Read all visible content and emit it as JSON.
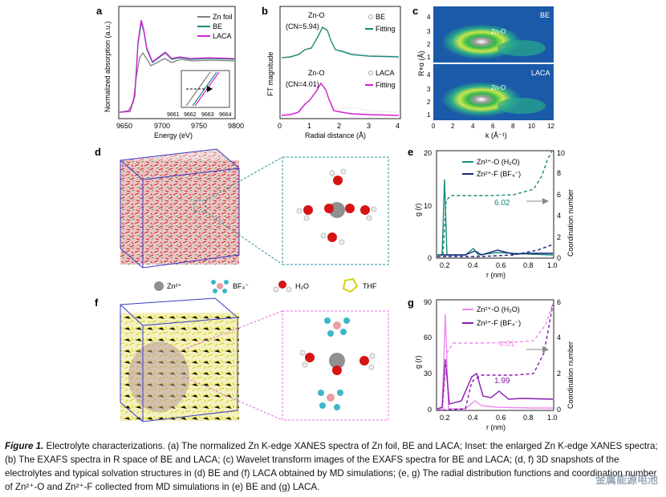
{
  "panels": {
    "a": {
      "letter": "a",
      "ylabel": "Normalized absorption (a.u.)",
      "xlabel": "Energy (eV)",
      "xticks": [
        "9650",
        "9700",
        "9750",
        "9800"
      ],
      "legend": [
        "Zn foil",
        "BE",
        "LACA"
      ],
      "inset_ticks": [
        "9661",
        "9662",
        "9663",
        "9664"
      ]
    },
    "b": {
      "letter": "b",
      "ylabel": "FT magnitude",
      "xlabel": "Radial distance (Å)",
      "xticks": [
        "0",
        "1",
        "2",
        "3",
        "4"
      ],
      "top_peak": "Zn-O",
      "top_cn": "(CN=5.94)",
      "bot_peak": "Zn-O",
      "bot_cn": "(CN=4.01)",
      "legend_top": [
        "BE",
        "Fitting"
      ],
      "legend_bot": [
        "LACA",
        "Fitting"
      ]
    },
    "c": {
      "letter": "c",
      "ylabel": "R+α (Å)",
      "xlabel": "k (Å⁻¹)",
      "xticks": [
        "0",
        "2",
        "4",
        "6",
        "8",
        "10",
        "12"
      ],
      "yticks": [
        "1",
        "2",
        "3",
        "4"
      ],
      "top_label": "BE",
      "bot_label": "LACA",
      "peak_label": "Zn-O"
    },
    "d": {
      "letter": "d"
    },
    "e": {
      "letter": "e",
      "ylabel_left": "g (r)",
      "ylabel_right": "Coordination number",
      "xlabel": "r (nm)",
      "xticks": [
        "0.2",
        "0.4",
        "0.6",
        "0.8",
        "1.0"
      ],
      "yticks_left": [
        "0",
        "10",
        "20"
      ],
      "yticks_right": [
        "0",
        "2",
        "4",
        "6",
        "8",
        "10"
      ],
      "legend": [
        "Zn²⁺-O (H₂O)",
        "Zn²⁺-F (BF₄⁻)"
      ],
      "cn_label": "6.02"
    },
    "f": {
      "letter": "f"
    },
    "g": {
      "letter": "g",
      "ylabel_left": "g (r)",
      "ylabel_right": "Coordination number",
      "xlabel": "r (nm)",
      "xticks": [
        "0.2",
        "0.4",
        "0.6",
        "0.8",
        "1.0"
      ],
      "yticks_left": [
        "0",
        "30",
        "60",
        "90"
      ],
      "yticks_right": [
        "0",
        "2",
        "4",
        "6"
      ],
      "legend": [
        "Zn²⁺-O (H₂O)",
        "Zn²⁺-F (BF₄⁻)"
      ],
      "cn_label_1": "4.01",
      "cn_label_2": "1.99"
    }
  },
  "species_legend": [
    "Zn²⁺",
    "BF₄⁻",
    "H₂O",
    "THF"
  ],
  "caption": {
    "lead": "Figure 1.",
    "text": " Electrolyte characterizations. (a) The normalized Zn K-edge XANES spectra of Zn foil, BE and LACA; Inset: the enlarged Zn K-edge XANES spectra; (b) The EXAFS spectra in R space of BE and LACA; (c) Wavelet transform images of the EXAFS spectra for BE and LACA; (d, f) 3D snapshots of the electrolytes and typical solvation structures in (d) BE and (f) LACA obtained by MD simulations; (e, g) The radial distribution functions and coordination number of Zn²⁺-O and Zn²⁺-F collected from MD simulations in (e) BE and (g) LACA."
  },
  "watermark": "金属能源电池",
  "colors": {
    "zn_foil": "#808080",
    "be": "#1a8a7a",
    "laca": "#d61fd6",
    "be_fit": "#1a8a7a",
    "laca_fit": "#d61fd6",
    "zn_o_e": "#1a8a7a",
    "zn_f_e": "#1a237e",
    "zn_o_g": "#ee88ee",
    "zn_f_g": "#8a1ab0",
    "box": "#3a3acc",
    "dash_box": "#2e8fa0",
    "dash_box_g": "#e070e0"
  }
}
